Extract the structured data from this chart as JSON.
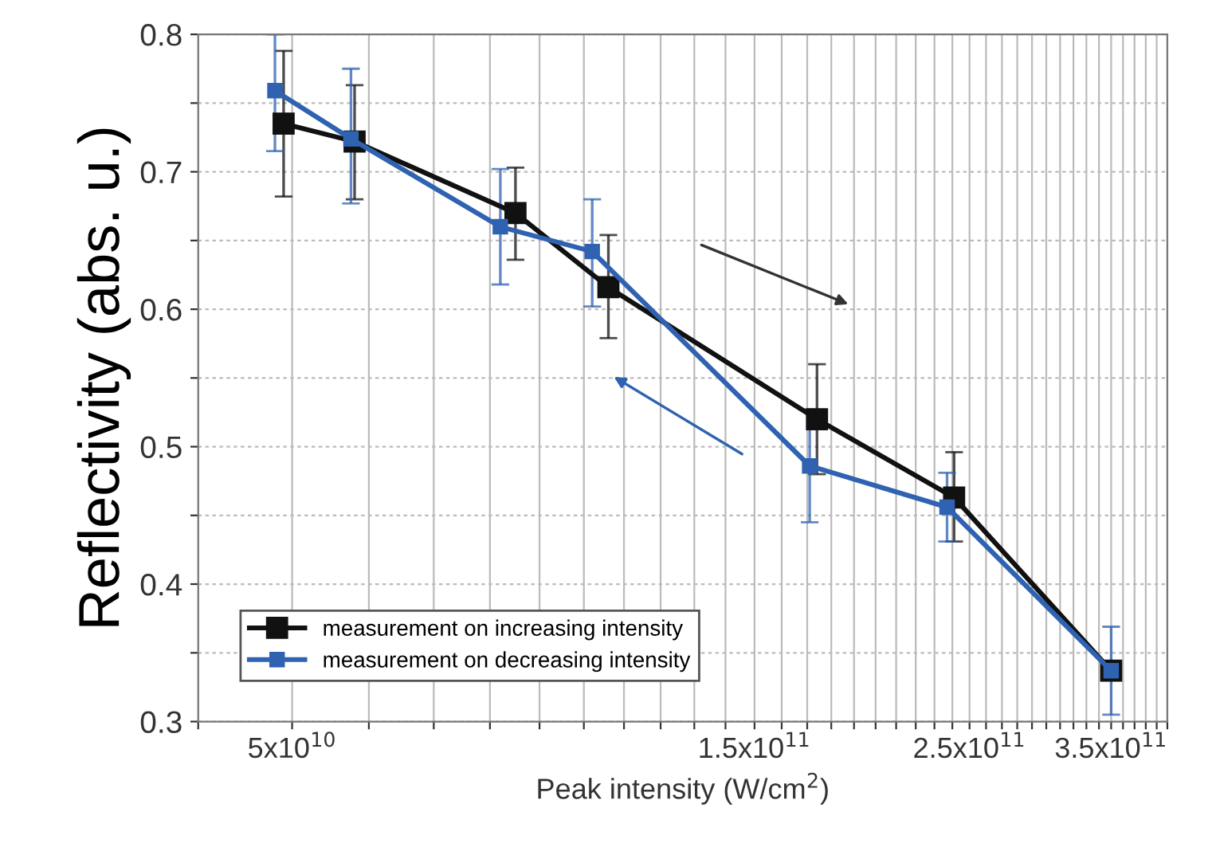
{
  "chart_data": {
    "type": "line",
    "xlabel": "Peak intensity (W/cm$^{2}$)",
    "ylabel": "Reflectivity (abs. u.)",
    "log": "x",
    "xlim": [
      40000000000.0,
      400000000000.0
    ],
    "xticks": [
      {
        "value": 40000000000.0,
        "label": null
      },
      {
        "value": 50000000000.0,
        "label": "5x10$^{10}$"
      },
      {
        "value": 60000000000.0,
        "label": null
      },
      {
        "value": 70000000000.0,
        "label": null
      },
      {
        "value": 80000000000.0,
        "label": null
      },
      {
        "value": 90000000000.0,
        "label": null
      },
      {
        "value": 100000000000.0,
        "label": null
      },
      {
        "value": 110000000000.0,
        "label": null
      },
      {
        "value": 120000000000.0,
        "label": null
      },
      {
        "value": 130000000000.0,
        "label": null
      },
      {
        "value": 140000000000.0,
        "label": null
      },
      {
        "value": 150000000000.0,
        "label": "1.5x10$^{11}$"
      },
      {
        "value": 160000000000.0,
        "label": null
      },
      {
        "value": 170000000000.0,
        "label": null
      },
      {
        "value": 180000000000.0,
        "label": null
      },
      {
        "value": 190000000000.0,
        "label": null
      },
      {
        "value": 200000000000.0,
        "label": null
      },
      {
        "value": 210000000000.0,
        "label": null
      },
      {
        "value": 220000000000.0,
        "label": null
      },
      {
        "value": 230000000000.0,
        "label": null
      },
      {
        "value": 240000000000.0,
        "label": null
      },
      {
        "value": 250000000000.0,
        "label": "2.5x10$^{11}$"
      },
      {
        "value": 260000000000.0,
        "label": null
      },
      {
        "value": 270000000000.0,
        "label": null
      },
      {
        "value": 280000000000.0,
        "label": null
      },
      {
        "value": 290000000000.0,
        "label": null
      },
      {
        "value": 300000000000.0,
        "label": null
      },
      {
        "value": 310000000000.0,
        "label": null
      },
      {
        "value": 320000000000.0,
        "label": null
      },
      {
        "value": 330000000000.0,
        "label": null
      },
      {
        "value": 340000000000.0,
        "label": null
      },
      {
        "value": 350000000000.0,
        "label": "3.5x10$^{11}$"
      },
      {
        "value": 360000000000.0,
        "label": null
      },
      {
        "value": 370000000000.0,
        "label": null
      },
      {
        "value": 380000000000.0,
        "label": null
      },
      {
        "value": 390000000000.0,
        "label": null
      },
      {
        "value": 400000000000.0,
        "label": null
      }
    ],
    "ylim": [
      0.3,
      0.8
    ],
    "yticks": [
      0.3,
      {
        "value": 0.35,
        "label": null
      },
      0.4,
      {
        "value": 0.45,
        "label": null
      },
      0.5,
      {
        "value": 0.55,
        "label": null
      },
      0.6,
      {
        "value": 0.65,
        "label": null
      },
      0.7,
      {
        "value": 0.75,
        "label": null
      },
      0.8
    ],
    "grid": true,
    "marker": "square",
    "legend": "bottom left",
    "series": [
      {
        "name": "measurement on increasing intensity",
        "color": "#111111",
        "x": [
          49000000000.0,
          58000000000.0,
          85000000000.0,
          106000000000.0,
          174000000000.0,
          241000000000.0,
          350000000000.0
        ],
        "values": [
          0.735,
          0.722,
          0.67,
          0.616,
          0.52,
          0.463,
          0.337
        ],
        "errors": [
          [
            0.682,
            0.788
          ],
          [
            0.68,
            0.763
          ],
          [
            0.636,
            0.703
          ],
          [
            0.579,
            0.654
          ],
          [
            0.48,
            0.56
          ],
          [
            0.431,
            0.496
          ],
          null
        ]
      },
      {
        "name": "measurement on decreasing intensity",
        "color": "#2f62b0",
        "x": [
          48000000000.0,
          57500000000.0,
          82000000000.0,
          102000000000.0,
          171000000000.0,
          237000000000.0,
          350000000000.0
        ],
        "values": [
          0.759,
          0.724,
          0.66,
          0.642,
          0.486,
          0.456,
          0.337
        ],
        "errors": [
          [
            0.715,
            0.8
          ],
          [
            0.677,
            0.775
          ],
          [
            0.618,
            0.702
          ],
          [
            0.602,
            0.68
          ],
          [
            0.445,
            0.527
          ],
          [
            0.431,
            0.481
          ],
          [
            0.305,
            0.369
          ]
        ]
      }
    ]
  }
}
